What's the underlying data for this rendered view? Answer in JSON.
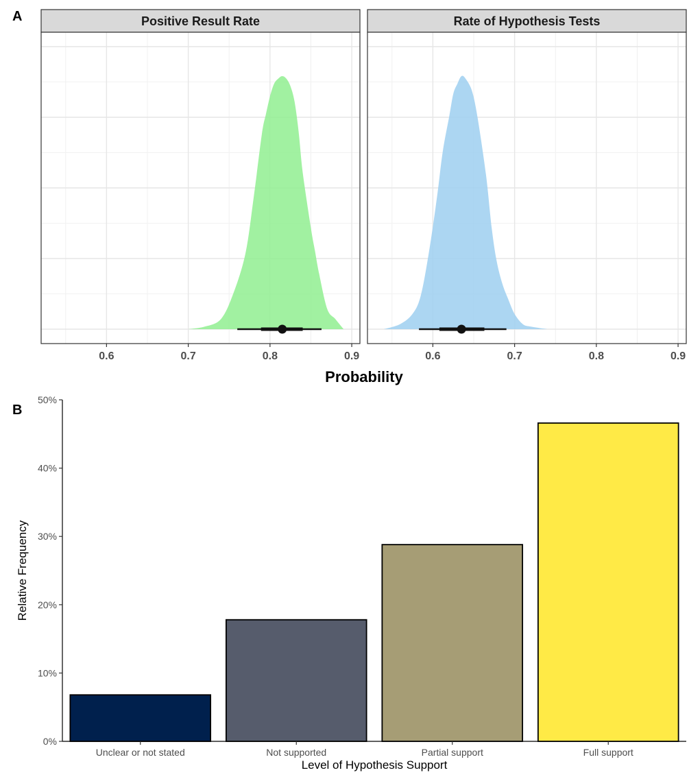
{
  "chart_data": [
    {
      "panel": "A",
      "type": "area",
      "xlabel": "Probability",
      "xlim": [
        0.52,
        0.91
      ],
      "x_ticks": [
        0.6,
        0.7,
        0.8,
        0.9
      ],
      "x_tick_labels": [
        "0.6",
        "0.7",
        "0.8",
        "0.9"
      ],
      "grid": true,
      "facets": [
        {
          "label": "Positive Result Rate",
          "color": "#90EE90",
          "density_x": [
            0.7,
            0.72,
            0.74,
            0.755,
            0.77,
            0.78,
            0.79,
            0.795,
            0.8,
            0.805,
            0.81,
            0.815,
            0.82,
            0.825,
            0.83,
            0.835,
            0.84,
            0.85,
            0.855,
            0.86,
            0.87,
            0.88,
            0.89
          ],
          "density_y": [
            0.0,
            0.01,
            0.04,
            0.14,
            0.3,
            0.52,
            0.77,
            0.85,
            0.92,
            0.97,
            0.99,
            1.0,
            0.99,
            0.96,
            0.9,
            0.78,
            0.62,
            0.4,
            0.31,
            0.22,
            0.08,
            0.04,
            0.0
          ],
          "point": 0.815,
          "interval_66": [
            0.789,
            0.84
          ],
          "interval_95": [
            0.76,
            0.863
          ]
        },
        {
          "label": "Rate of Hypothesis Tests",
          "color": "#9ECFF0",
          "density_x": [
            0.54,
            0.56,
            0.575,
            0.585,
            0.595,
            0.605,
            0.612,
            0.62,
            0.625,
            0.63,
            0.635,
            0.64,
            0.648,
            0.655,
            0.665,
            0.672,
            0.678,
            0.685,
            0.692,
            0.7,
            0.71,
            0.72,
            0.74
          ],
          "density_y": [
            0.0,
            0.02,
            0.06,
            0.13,
            0.3,
            0.52,
            0.7,
            0.84,
            0.93,
            0.97,
            1.0,
            0.99,
            0.94,
            0.83,
            0.61,
            0.4,
            0.27,
            0.18,
            0.12,
            0.06,
            0.02,
            0.01,
            0.0
          ],
          "point": 0.635,
          "interval_66": [
            0.608,
            0.663
          ],
          "interval_95": [
            0.583,
            0.69
          ]
        }
      ]
    },
    {
      "panel": "B",
      "type": "bar",
      "xlabel": "Level of Hypothesis Support",
      "ylabel": "Relative Frequency",
      "ylim": [
        0,
        0.5
      ],
      "y_ticks": [
        0,
        0.1,
        0.2,
        0.3,
        0.4,
        0.5
      ],
      "y_tick_labels": [
        "0%",
        "10%",
        "20%",
        "30%",
        "40%",
        "50%"
      ],
      "grid": false,
      "categories": [
        "Unclear or not stated",
        "Not supported",
        "Partial support",
        "Full support"
      ],
      "values": [
        0.068,
        0.178,
        0.288,
        0.466
      ],
      "colors": [
        "#00204D",
        "#565C6C",
        "#A69D75",
        "#FFEA46"
      ]
    }
  ],
  "labels": {
    "panel_a": "A",
    "panel_b": "B"
  }
}
